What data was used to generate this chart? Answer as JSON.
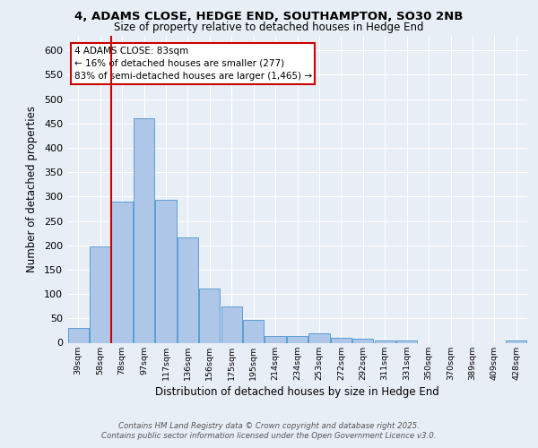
{
  "title_line1": "4, ADAMS CLOSE, HEDGE END, SOUTHAMPTON, SO30 2NB",
  "title_line2": "Size of property relative to detached houses in Hedge End",
  "xlabel": "Distribution of detached houses by size in Hedge End",
  "ylabel": "Number of detached properties",
  "bin_labels": [
    "39sqm",
    "58sqm",
    "78sqm",
    "97sqm",
    "117sqm",
    "136sqm",
    "156sqm",
    "175sqm",
    "195sqm",
    "214sqm",
    "234sqm",
    "253sqm",
    "272sqm",
    "292sqm",
    "311sqm",
    "331sqm",
    "350sqm",
    "370sqm",
    "389sqm",
    "409sqm",
    "428sqm"
  ],
  "bar_values": [
    30,
    197,
    290,
    460,
    293,
    216,
    112,
    75,
    46,
    14,
    14,
    19,
    10,
    8,
    5,
    4,
    0,
    0,
    0,
    0,
    5
  ],
  "bar_color": "#aec6e8",
  "bar_edge_color": "#5a9fd4",
  "vline_x_index": 1.525,
  "vline_color": "#cc0000",
  "annotation_text": "4 ADAMS CLOSE: 83sqm\n← 16% of detached houses are smaller (277)\n83% of semi-detached houses are larger (1,465) →",
  "annotation_box_color": "white",
  "annotation_box_edge_color": "#cc0000",
  "background_color": "#e8eef5",
  "plot_bg_color": "#e8eef5",
  "grid_color": "white",
  "footer_line1": "Contains HM Land Registry data © Crown copyright and database right 2025.",
  "footer_line2": "Contains public sector information licensed under the Open Government Licence v3.0.",
  "ylim": [
    0,
    630
  ],
  "yticks": [
    0,
    50,
    100,
    150,
    200,
    250,
    300,
    350,
    400,
    450,
    500,
    550,
    600
  ]
}
